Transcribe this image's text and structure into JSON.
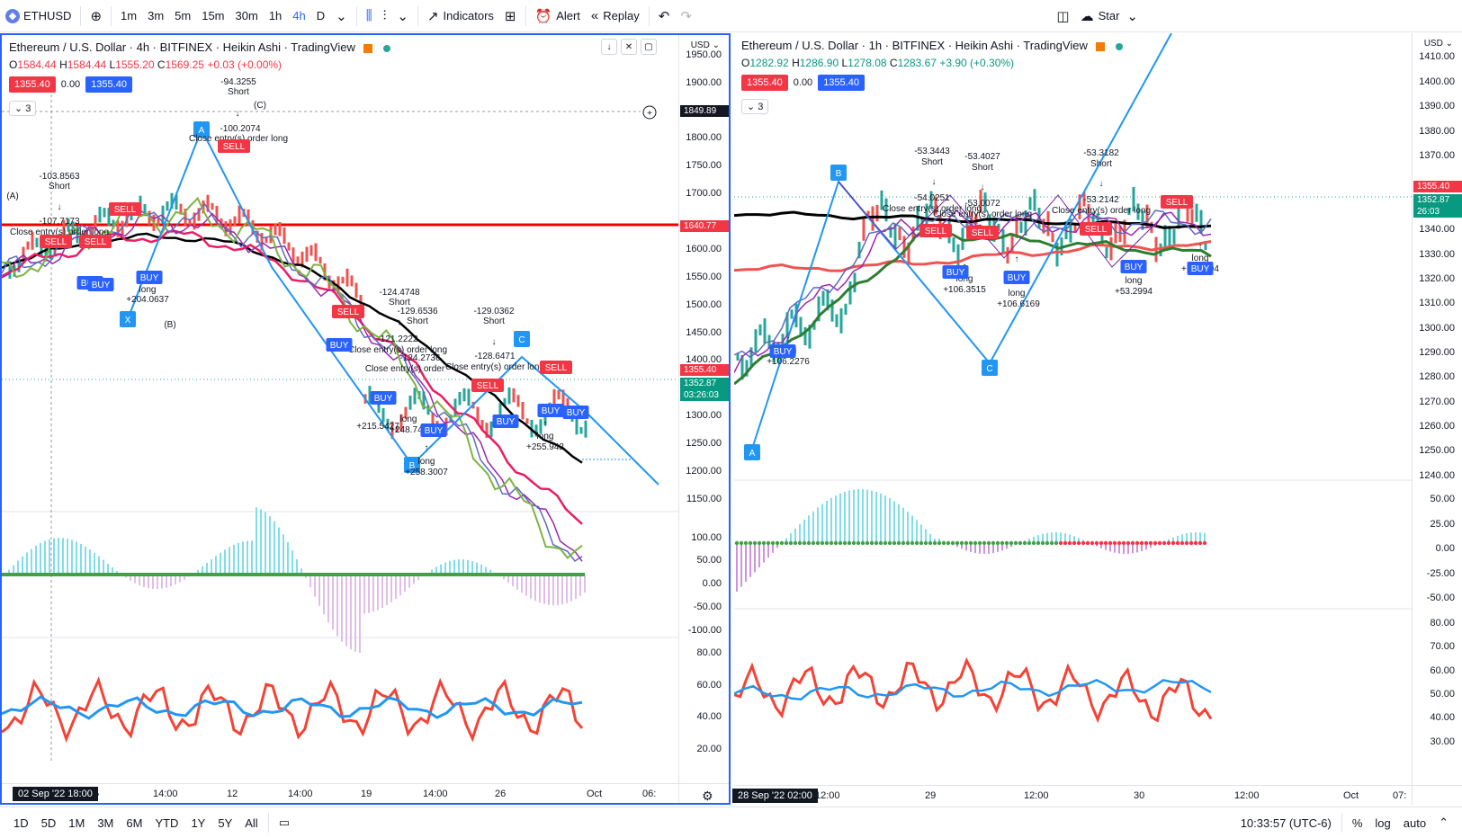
{
  "toolbar": {
    "symbol": "ETHUSD",
    "intervals": [
      "1m",
      "3m",
      "5m",
      "15m",
      "30m",
      "1h",
      "4h",
      "D"
    ],
    "active_interval": "4h",
    "indicators_label": "Indicators",
    "alert_label": "Alert",
    "replay_label": "Replay",
    "layout_label": "Star"
  },
  "left": {
    "title": "Ethereum / U.S. Dollar · 4h · BITFINEX · Heikin Ashi · TradingView",
    "ohlc": {
      "o": "1584.44",
      "h": "1584.44",
      "l": "1555.20",
      "c": "1569.25",
      "chg": "+0.03 (+0.00%)"
    },
    "price_box_left": "1355.40",
    "spread": "0.00",
    "price_box_right": "1355.40",
    "collapse_count": "3",
    "currency": "USD",
    "price_ticks": [
      "1950.00",
      "1900.00",
      "1850.00",
      "1800.00",
      "1750.00",
      "1700.00",
      "1650.00",
      "1600.00",
      "1550.00",
      "1500.00",
      "1450.00",
      "1400.00",
      "1350.00",
      "1300.00",
      "1250.00",
      "1200.00",
      "1150.00"
    ],
    "osc_ticks": [
      "100.00",
      "50.00",
      "0.00",
      "-50.00",
      "-100.00"
    ],
    "rsi_ticks": [
      "80.00",
      "60.00",
      "40.00",
      "20.00"
    ],
    "tags": {
      "crosshair": "1849.89",
      "red_line": "1640.77",
      "last": "1355.40",
      "price": "1352.87",
      "countdown": "03:26:03"
    },
    "time_labels": [
      "5",
      "14:00",
      "12",
      "14:00",
      "19",
      "14:00",
      "26",
      "Oct",
      "06:"
    ],
    "cursor_time": "02 Sep '22  18:00",
    "annotations": {
      "a1": "-94.3255",
      "a1s": "Short",
      "c_lbl": "(C)",
      "a2": "-100.2074",
      "a2s": "Close entry(s) order long",
      "a3": "-103.8563",
      "a3s": "Short",
      "a4": "-107.7173",
      "a4s": "Close entry(s) order long",
      "a5": "long",
      "a5v": "+204.0637",
      "A_lbl": "(A)",
      "B_lbl": "(B)",
      "a6": "-124.4748",
      "a6s": "Short",
      "a7": "-129.6536",
      "a7s": "Short",
      "a8": "-129.0362",
      "a8s": "Short",
      "a9": "-121.2222",
      "a9s": "Close entry(s) order long",
      "a10": "-124.2736",
      "a10s": "Close entry(s) order",
      "a11": "-128.6471",
      "a11s": "Close entry(s) order long",
      "a12": "long",
      "a12v": "+215.5427",
      "a13": "long",
      "a13v": "+248.7484",
      "a14": "long",
      "a14v": "+258.3007",
      "a15": "long",
      "a15v": "+255.942"
    },
    "badges": {
      "buy": "BUY",
      "sell": "SELL",
      "x": "X",
      "a": "A",
      "b": "B",
      "c": "C"
    }
  },
  "right": {
    "title": "Ethereum / U.S. Dollar · 1h · BITFINEX · Heikin Ashi · TradingView",
    "ohlc": {
      "o": "1282.92",
      "h": "1286.90",
      "l": "1278.08",
      "c": "1283.67",
      "chg": "+3.90 (+0.30%)"
    },
    "price_box_left": "1355.40",
    "spread": "0.00",
    "price_box_right": "1355.40",
    "collapse_count": "3",
    "currency": "USD",
    "price_ticks": [
      "1410.00",
      "1400.00",
      "1390.00",
      "1380.00",
      "1370.00",
      "1360.00",
      "1350.00",
      "1340.00",
      "1330.00",
      "1320.00",
      "1310.00",
      "1300.00",
      "1290.00",
      "1280.00",
      "1270.00",
      "1260.00",
      "1250.00",
      "1240.00"
    ],
    "osc_ticks": [
      "50.00",
      "25.00",
      "0.00",
      "-25.00",
      "-50.00"
    ],
    "rsi_ticks": [
      "80.00",
      "70.00",
      "60.00",
      "50.00",
      "40.00",
      "30.00"
    ],
    "tags": {
      "last": "1355.40",
      "price": "1352.87",
      "countdown": "26:03"
    },
    "time_labels": [
      "12:00",
      "29",
      "12:00",
      "30",
      "12:00",
      "Oct",
      "07:"
    ],
    "cursor_time": "28 Sep '22  02:00",
    "annotations": {
      "b1": "-53.3443",
      "b1s": "Short",
      "b2": "-53.4027",
      "b2s": "Short",
      "b3": "-53.3182",
      "b3s": "Short",
      "b4": "-54.0251",
      "b4s": "Close entry(s) order long",
      "b5": "-53.0072",
      "b5s": "Close entry(s) order long",
      "b6": "-53.2142",
      "b6s": "Close entry(s) order long",
      "b7": "long",
      "b7v": "+106.2276",
      "b8": "long",
      "b8v": "+106.3515",
      "b9": "long",
      "b9v": "+106.6169",
      "b10": "long",
      "b10v": "+53.2994",
      "b11": "long",
      "b11v": "+52.6594"
    },
    "badges": {
      "buy": "BUY",
      "sell": "SELL",
      "a": "A",
      "b": "B",
      "c": "C"
    }
  },
  "bottom": {
    "ranges": [
      "1D",
      "5D",
      "1M",
      "3M",
      "6M",
      "YTD",
      "1Y",
      "5Y",
      "All"
    ],
    "clock": "10:33:57 (UTC-6)",
    "pct": "%",
    "log": "log",
    "auto": "auto"
  },
  "colors": {
    "accent": "#2962ff",
    "red": "#f23645",
    "green": "#089981",
    "black_ma": "#000000"
  }
}
